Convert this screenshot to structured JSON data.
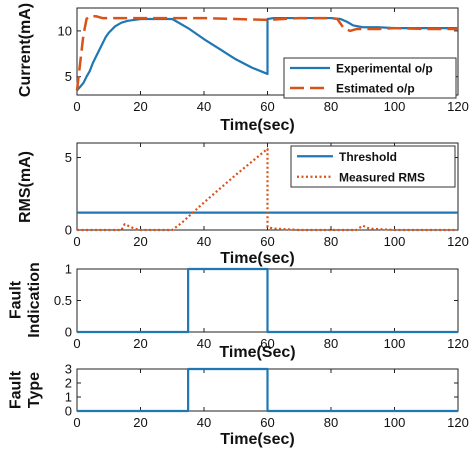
{
  "chart_data": [
    {
      "type": "line",
      "xlabel": "Time(sec)",
      "ylabel": "Current(mA)",
      "xlim": [
        0,
        120
      ],
      "ylim": [
        3,
        12.5
      ],
      "x_ticks": [
        0,
        20,
        40,
        60,
        80,
        100,
        120
      ],
      "y_ticks": [
        5,
        10
      ],
      "grid": false,
      "legend_position": "right",
      "series": [
        {
          "name": "Experimental o/p",
          "color": "#1f77b4",
          "style": "solid",
          "x": [
            0,
            1,
            2,
            3,
            4,
            5,
            6,
            7,
            8,
            9,
            10,
            12,
            14,
            16,
            18,
            20,
            25,
            30,
            35,
            40,
            45,
            50,
            55,
            60,
            60,
            62,
            65,
            70,
            75,
            80,
            83,
            85,
            87,
            90,
            95,
            100,
            110,
            120
          ],
          "y": [
            3.5,
            3.9,
            4.3,
            5.0,
            5.6,
            6.5,
            7.2,
            7.9,
            8.6,
            9.3,
            9.8,
            10.5,
            10.9,
            11.1,
            11.2,
            11.3,
            11.3,
            11.3,
            10.3,
            9.1,
            8.0,
            6.9,
            6.0,
            5.3,
            11.3,
            11.4,
            11.4,
            11.4,
            11.4,
            11.4,
            11.3,
            11.0,
            10.6,
            10.4,
            10.4,
            10.3,
            10.3,
            10.3
          ]
        },
        {
          "name": "Estimated o/p",
          "color": "#d95319",
          "style": "dashed",
          "x": [
            0,
            1,
            2,
            3,
            4,
            5,
            6,
            7,
            8,
            10,
            12,
            15,
            20,
            30,
            40,
            50,
            60,
            70,
            80,
            82,
            84,
            86,
            88,
            90,
            95,
            100,
            110,
            120
          ],
          "y": [
            3.5,
            6.5,
            9.5,
            11.3,
            11.6,
            11.6,
            11.6,
            11.5,
            11.4,
            11.4,
            11.4,
            11.4,
            11.4,
            11.4,
            11.4,
            11.3,
            11.2,
            11.4,
            11.4,
            11.3,
            10.3,
            10.0,
            10.2,
            10.2,
            10.2,
            10.3,
            10.2,
            10.2
          ]
        }
      ]
    },
    {
      "type": "line",
      "xlabel": "Time(sec)",
      "ylabel": "RMS(mA)",
      "xlim": [
        0,
        120
      ],
      "ylim": [
        0,
        6
      ],
      "x_ticks": [
        0,
        20,
        40,
        60,
        80,
        100,
        120
      ],
      "y_ticks": [
        0,
        5
      ],
      "grid": false,
      "legend_position": "top-right",
      "series": [
        {
          "name": "Threshold",
          "color": "#1f77b4",
          "style": "solid",
          "x": [
            0,
            120
          ],
          "y": [
            1.2,
            1.2
          ]
        },
        {
          "name": "Measured RMS",
          "color": "#d95319",
          "style": "dotted",
          "x": [
            0,
            14,
            15,
            16,
            18,
            20,
            30,
            33,
            40,
            50,
            60,
            60,
            62,
            70,
            88,
            90,
            92,
            100,
            120
          ],
          "y": [
            0.0,
            0.0,
            0.4,
            0.3,
            0.1,
            0.0,
            0.0,
            0.5,
            1.9,
            3.8,
            5.6,
            0.2,
            0.1,
            0.0,
            0.0,
            0.3,
            0.1,
            0.0,
            0.0
          ]
        }
      ]
    },
    {
      "type": "line",
      "xlabel": "Time(Sec)",
      "ylabel": "Fault Indication",
      "xlim": [
        0,
        120
      ],
      "ylim": [
        0,
        1
      ],
      "x_ticks": [
        0,
        20,
        40,
        60,
        80,
        100,
        120
      ],
      "y_ticks": [
        0,
        0.5,
        1
      ],
      "grid": false,
      "series": [
        {
          "color": "#1f77b4",
          "style": "solid",
          "x": [
            0,
            35,
            35,
            60,
            60,
            120
          ],
          "y": [
            0,
            0,
            1,
            1,
            0,
            0
          ]
        }
      ]
    },
    {
      "type": "line",
      "xlabel": "Time(sec)",
      "ylabel": "Fault Type",
      "xlim": [
        0,
        120
      ],
      "ylim": [
        0,
        3
      ],
      "x_ticks": [
        0,
        20,
        40,
        60,
        80,
        100,
        120
      ],
      "y_ticks": [
        0,
        1,
        2,
        3
      ],
      "grid": false,
      "series": [
        {
          "color": "#1f77b4",
          "style": "solid",
          "x": [
            0,
            35,
            35,
            60,
            60,
            120
          ],
          "y": [
            0,
            0,
            3,
            3,
            0,
            0
          ]
        }
      ]
    }
  ]
}
